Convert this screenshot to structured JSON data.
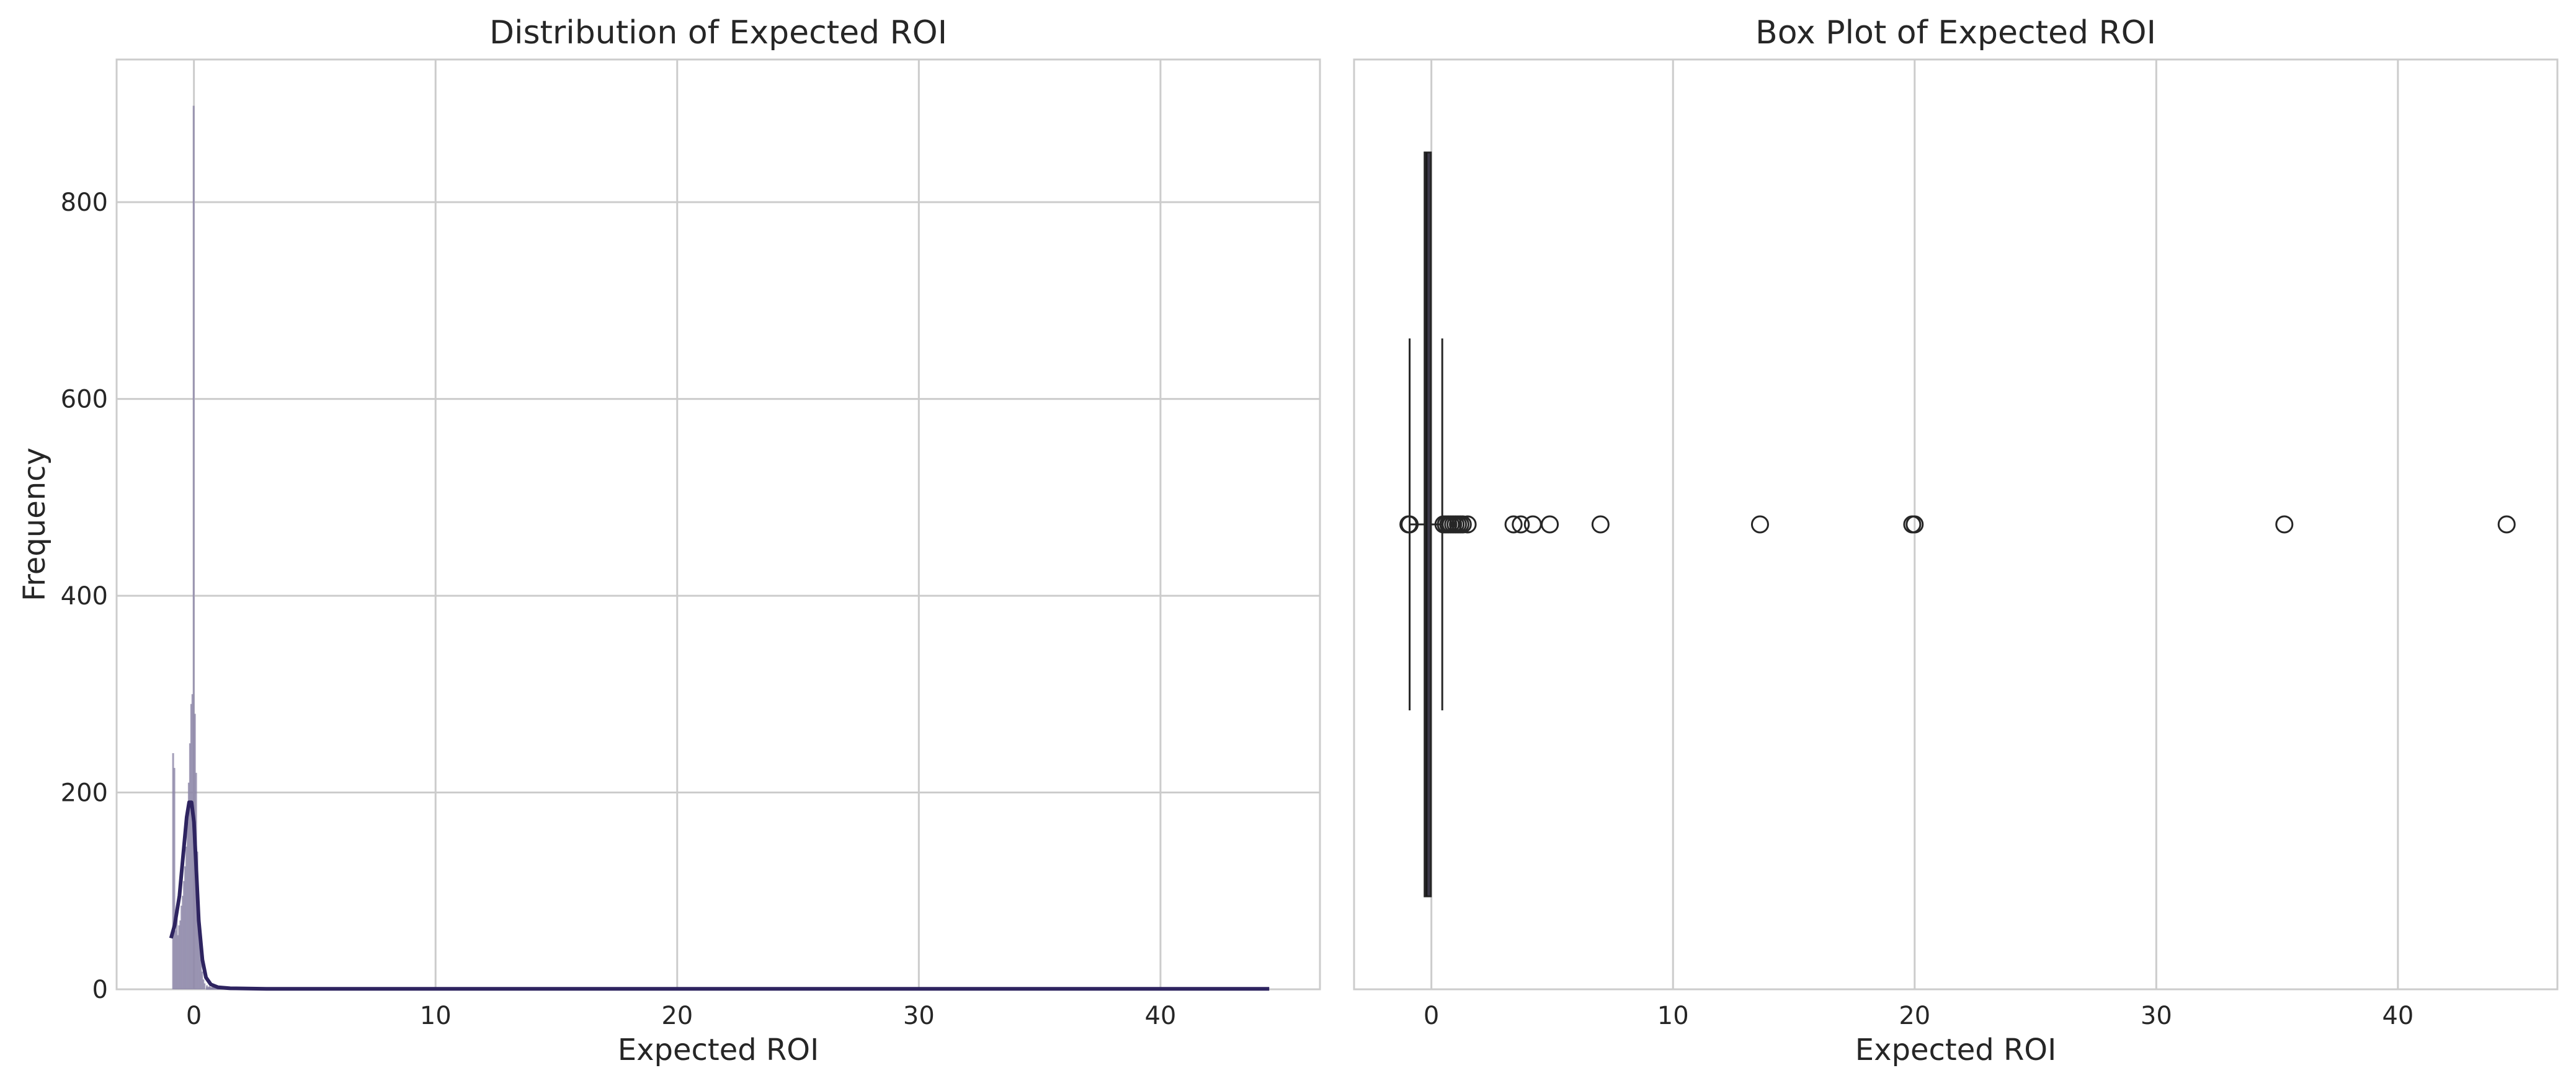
{
  "colors": {
    "hist_fill": "#8c86a8",
    "kde_line": "#2e2460",
    "box_fill": "#3d3a4a",
    "whisker": "#262626",
    "grid": "#cccccc",
    "spine": "#cccccc"
  },
  "chart_data": [
    {
      "type": "histogram",
      "title": "Distribution of Expected ROI",
      "xlabel": "Expected ROI",
      "ylabel": "Frequency",
      "xlim": [
        -3.2,
        46.6
      ],
      "ylim": [
        0,
        945
      ],
      "xticks": [
        0,
        10,
        20,
        30,
        40
      ],
      "yticks": [
        0,
        200,
        400,
        600,
        800
      ],
      "grid": true,
      "bins": [
        {
          "x": -0.9,
          "y": 240
        },
        {
          "x": -0.85,
          "y": 225
        },
        {
          "x": -0.8,
          "y": 60
        },
        {
          "x": -0.75,
          "y": 75
        },
        {
          "x": -0.7,
          "y": 55
        },
        {
          "x": -0.65,
          "y": 65
        },
        {
          "x": -0.6,
          "y": 70
        },
        {
          "x": -0.55,
          "y": 85
        },
        {
          "x": -0.5,
          "y": 95
        },
        {
          "x": -0.45,
          "y": 110
        },
        {
          "x": -0.4,
          "y": 125
        },
        {
          "x": -0.35,
          "y": 145
        },
        {
          "x": -0.3,
          "y": 170
        },
        {
          "x": -0.25,
          "y": 210
        },
        {
          "x": -0.2,
          "y": 250
        },
        {
          "x": -0.15,
          "y": 290
        },
        {
          "x": -0.1,
          "y": 300
        },
        {
          "x": -0.05,
          "y": 898
        },
        {
          "x": 0.0,
          "y": 280
        },
        {
          "x": 0.05,
          "y": 220
        },
        {
          "x": 0.1,
          "y": 140
        },
        {
          "x": 0.15,
          "y": 90
        },
        {
          "x": 0.2,
          "y": 55
        },
        {
          "x": 0.25,
          "y": 30
        },
        {
          "x": 0.3,
          "y": 18
        },
        {
          "x": 0.35,
          "y": 10
        },
        {
          "x": 0.4,
          "y": 6
        },
        {
          "x": 0.5,
          "y": 4
        },
        {
          "x": 0.6,
          "y": 3
        },
        {
          "x": 0.8,
          "y": 2
        },
        {
          "x": 1.0,
          "y": 2
        },
        {
          "x": 1.3,
          "y": 1
        },
        {
          "x": 1.6,
          "y": 1
        }
      ],
      "kde": [
        {
          "x": -0.95,
          "y": 52
        },
        {
          "x": -0.8,
          "y": 65
        },
        {
          "x": -0.6,
          "y": 95
        },
        {
          "x": -0.45,
          "y": 135
        },
        {
          "x": -0.3,
          "y": 175
        },
        {
          "x": -0.2,
          "y": 190
        },
        {
          "x": -0.1,
          "y": 190
        },
        {
          "x": 0.0,
          "y": 170
        },
        {
          "x": 0.1,
          "y": 120
        },
        {
          "x": 0.2,
          "y": 70
        },
        {
          "x": 0.35,
          "y": 30
        },
        {
          "x": 0.5,
          "y": 12
        },
        {
          "x": 0.7,
          "y": 5
        },
        {
          "x": 1.0,
          "y": 2
        },
        {
          "x": 1.5,
          "y": 1
        },
        {
          "x": 3.0,
          "y": 0.5
        },
        {
          "x": 10,
          "y": 0.5
        },
        {
          "x": 20,
          "y": 0.5
        },
        {
          "x": 30,
          "y": 0.5
        },
        {
          "x": 44.5,
          "y": 0.5
        }
      ],
      "tail_range": [
        0.5,
        44.5
      ]
    },
    {
      "type": "box",
      "title": "Box Plot of Expected ROI",
      "xlabel": "Expected ROI",
      "xlim": [
        -3.2,
        46.6
      ],
      "xticks": [
        0,
        10,
        20,
        30,
        40
      ],
      "grid": true,
      "q1": -0.28,
      "median": -0.2,
      "q3": -0.05,
      "whisker_low": -0.9,
      "whisker_high": 0.45,
      "outliers": [
        -0.95,
        -0.9,
        0.5,
        0.6,
        0.7,
        0.8,
        0.9,
        1.0,
        1.1,
        1.2,
        1.3,
        1.5,
        3.4,
        3.7,
        4.2,
        4.9,
        7.0,
        13.6,
        19.9,
        20.0,
        35.3,
        44.5
      ]
    }
  ]
}
